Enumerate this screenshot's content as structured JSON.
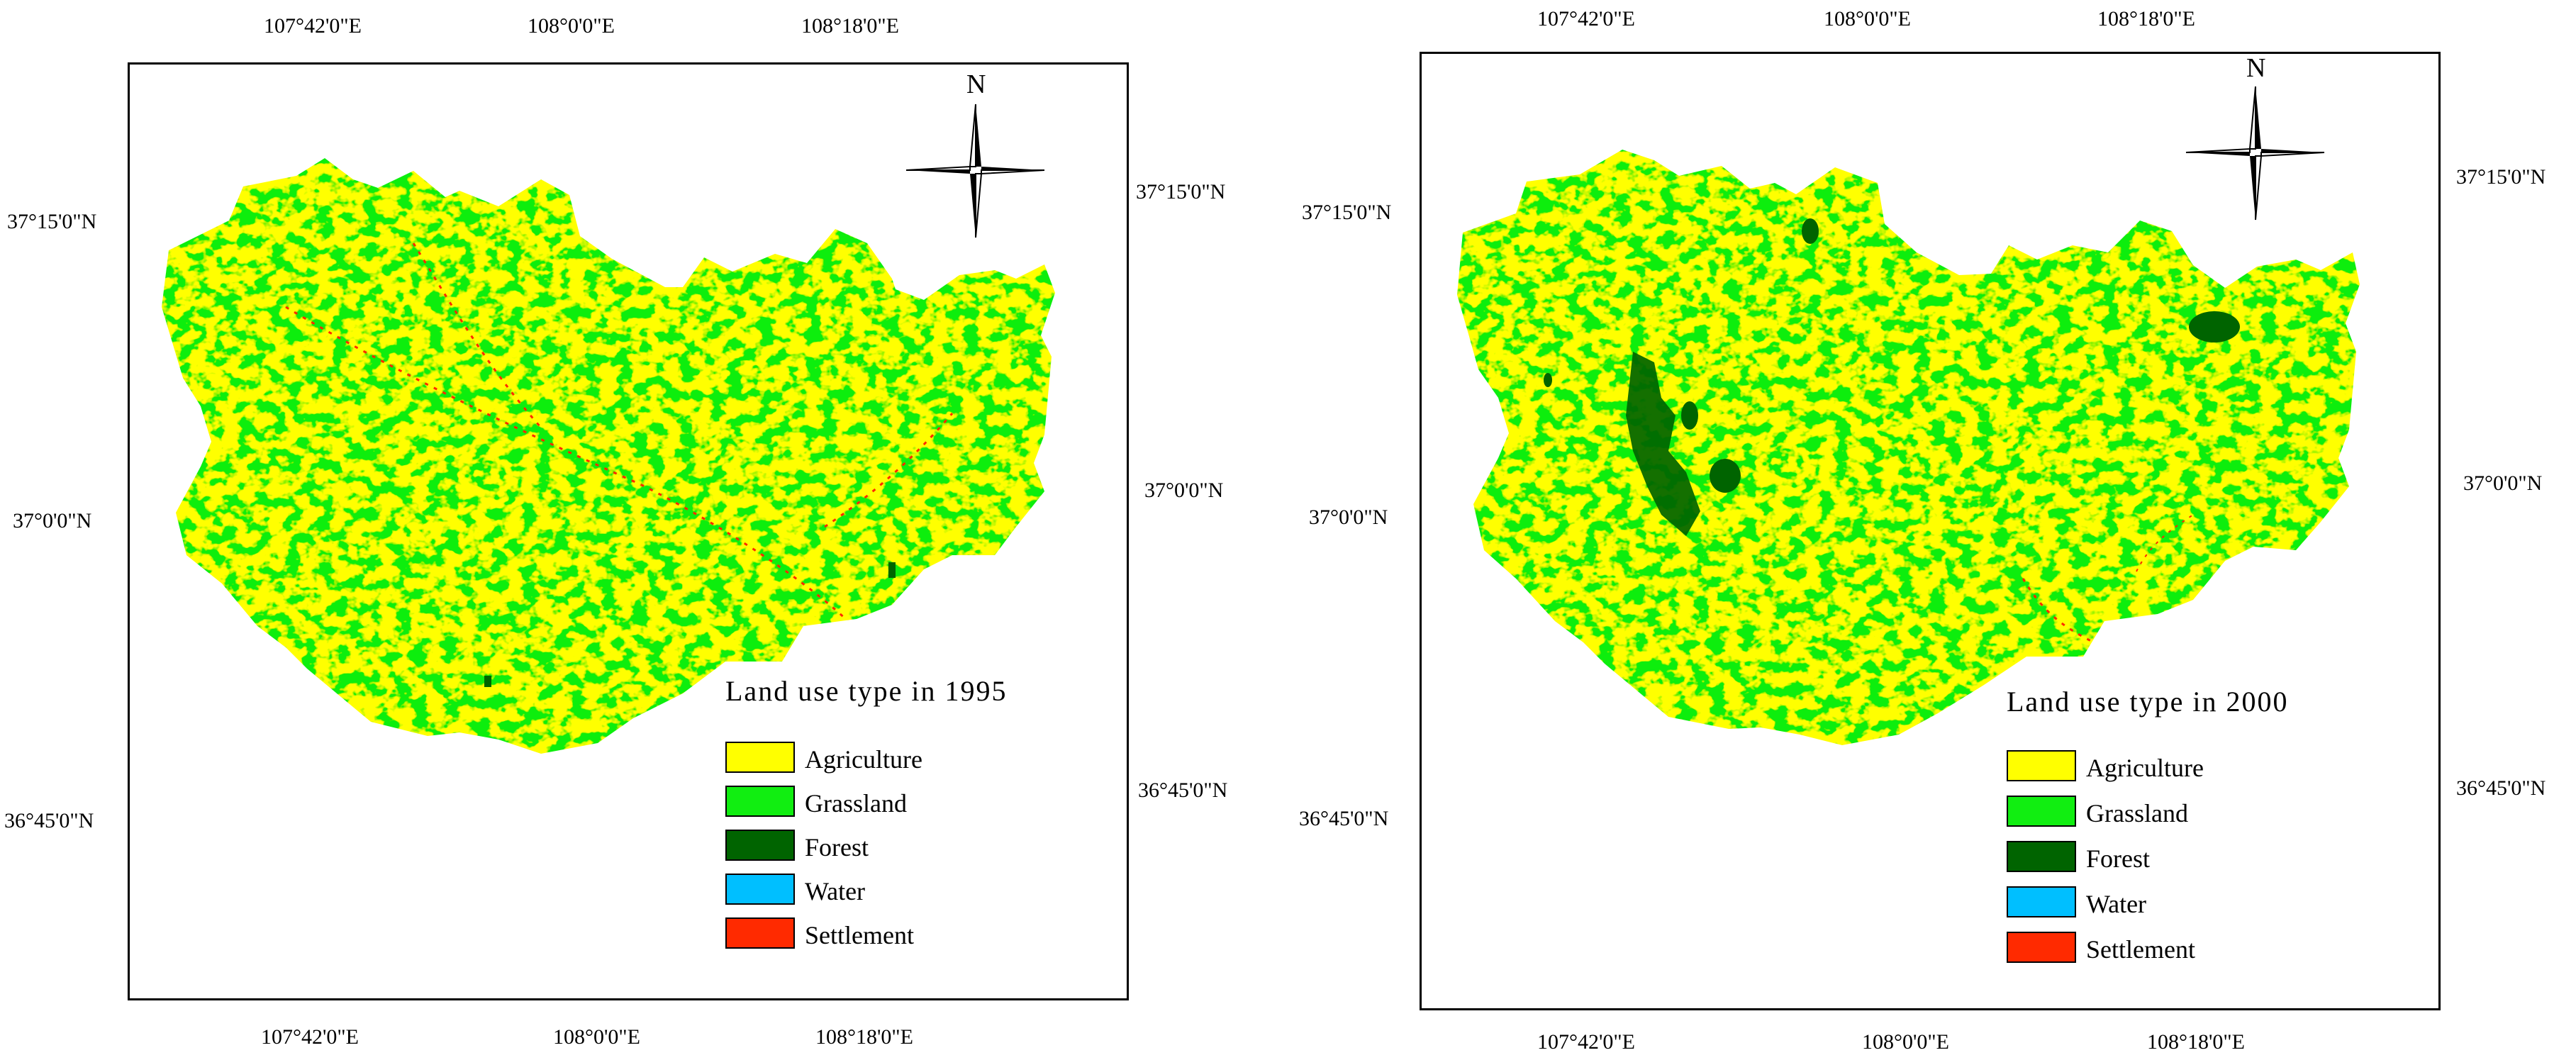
{
  "colors": {
    "agriculture": "#ffff00",
    "grassland": "#11ee11",
    "forest": "#006400",
    "water": "#00bfff",
    "settlement": "#ff2a00"
  },
  "maps": [
    {
      "legend_title": "Land use type in 1995",
      "north_label": "N",
      "lon_ticks_top": [
        "107°42'0\"E",
        "108°0'0\"E",
        "108°18'0\"E"
      ],
      "lon_ticks_bottom": [
        "107°42'0\"E",
        "108°0'0\"E",
        "108°18'0\"E"
      ],
      "lat_ticks_left": [
        "37°15'0\"N",
        "37°0'0\"N",
        "36°45'0\"N"
      ],
      "lat_ticks_right": [
        "37°15'0\"N",
        "37°0'0\"N",
        "36°45'0\"N"
      ],
      "legend": [
        {
          "label": "Agriculture",
          "icon": "yellow-swatch"
        },
        {
          "label": "Grassland",
          "icon": "green-swatch"
        },
        {
          "label": "Forest",
          "icon": "dark-green-swatch"
        },
        {
          "label": "Water",
          "icon": "blue-swatch"
        },
        {
          "label": "Settlement",
          "icon": "red-swatch"
        }
      ]
    },
    {
      "legend_title": "Land use type in 2000",
      "north_label": "N",
      "lon_ticks_top": [
        "107°42'0\"E",
        "108°0'0\"E",
        "108°18'0\"E"
      ],
      "lon_ticks_bottom": [
        "107°42'0\"E",
        "108°0'0\"E",
        "108°18'0\"E"
      ],
      "lat_ticks_left": [
        "37°15'0\"N",
        "37°0'0\"N",
        "36°45'0\"N"
      ],
      "lat_ticks_right": [
        "37°15'0\"N",
        "37°0'0\"N",
        "36°45'0\"N"
      ],
      "legend": [
        {
          "label": "Agriculture",
          "icon": "yellow-swatch"
        },
        {
          "label": "Grassland",
          "icon": "green-swatch"
        },
        {
          "label": "Forest",
          "icon": "dark-green-swatch"
        },
        {
          "label": "Water",
          "icon": "blue-swatch"
        },
        {
          "label": "Settlement",
          "icon": "red-swatch"
        }
      ]
    }
  ]
}
